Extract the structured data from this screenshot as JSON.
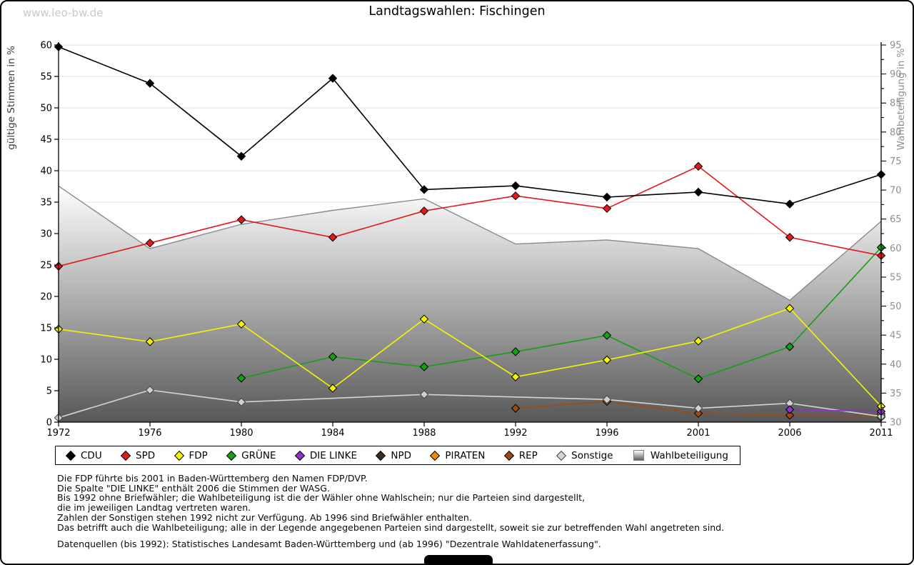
{
  "watermark": "www.leo-bw.de",
  "title": "Landtagswahlen: Fischingen",
  "axes": {
    "left_label": "gültige Stimmen in %",
    "right_label": "Wahlbeteiligung in %"
  },
  "chart_data": {
    "type": "line",
    "title": "Landtagswahlen: Fischingen",
    "x": [
      1972,
      1976,
      1980,
      1984,
      1988,
      1992,
      1996,
      2001,
      2006,
      2011
    ],
    "xlabel": "",
    "ylabel_left": "gültige Stimmen in %",
    "ylabel_right": "Wahlbeteiligung in %",
    "ylim_left": [
      0,
      60
    ],
    "ylim_right": [
      30,
      95
    ],
    "ytick_step": 5,
    "grid": true,
    "legend_position": "bottom",
    "series": [
      {
        "name": "CDU",
        "color": "#000000",
        "axis": "left",
        "type": "line",
        "values": [
          59.7,
          53.9,
          42.3,
          54.7,
          37.0,
          37.6,
          35.8,
          36.6,
          34.7,
          39.4
        ]
      },
      {
        "name": "SPD",
        "color": "#e2191c",
        "axis": "left",
        "type": "line",
        "values": [
          24.8,
          28.5,
          32.2,
          29.4,
          33.6,
          36.0,
          34.0,
          40.7,
          29.4,
          26.5
        ]
      },
      {
        "name": "FDP",
        "color": "#f5f500",
        "axis": "left",
        "type": "line",
        "values": [
          14.8,
          12.8,
          15.6,
          5.4,
          16.4,
          7.2,
          9.9,
          12.9,
          18.1,
          2.5
        ]
      },
      {
        "name": "GRÜNE",
        "color": "#169e16",
        "axis": "left",
        "type": "line",
        "values": [
          null,
          null,
          7.0,
          10.4,
          8.8,
          11.2,
          13.8,
          6.9,
          12.0,
          27.8
        ]
      },
      {
        "name": "DIE LINKE",
        "color": "#9131ce",
        "axis": "left",
        "type": "line",
        "values": [
          null,
          null,
          null,
          null,
          null,
          null,
          null,
          null,
          2.0,
          1.7
        ]
      },
      {
        "name": "NPD",
        "color": "#3b2b20",
        "axis": "left",
        "type": "line",
        "values": [
          null,
          null,
          null,
          null,
          null,
          null,
          null,
          null,
          null,
          0.8
        ]
      },
      {
        "name": "PIRATEN",
        "color": "#f08c00",
        "axis": "left",
        "type": "line",
        "values": [
          null,
          null,
          null,
          null,
          null,
          null,
          null,
          null,
          null,
          1.3
        ]
      },
      {
        "name": "REP",
        "color": "#9e4a15",
        "axis": "left",
        "type": "line",
        "values": [
          null,
          null,
          null,
          null,
          null,
          2.2,
          3.3,
          1.4,
          1.1,
          1.0
        ]
      },
      {
        "name": "Sonstige",
        "color": "#d4d4d4",
        "axis": "left",
        "type": "line",
        "values": [
          0.7,
          5.1,
          3.2,
          null,
          4.4,
          null,
          3.6,
          2.2,
          3.0,
          0.9
        ]
      },
      {
        "name": "Wahlbeteiligung",
        "color": "#8a8a8a",
        "axis": "right",
        "type": "area",
        "values": [
          70.7,
          59.9,
          64.1,
          66.5,
          68.5,
          60.7,
          61.4,
          59.9,
          51.0,
          64.6
        ]
      }
    ]
  },
  "footnotes": [
    "Die FDP führte bis 2001 in Baden-Württemberg den Namen FDP/DVP.",
    "Die Spalte \"DIE LINKE\" enthält 2006 die Stimmen der WASG.",
    "Bis 1992 ohne Briefwähler; die Wahlbeteiligung ist die der Wähler ohne Wahlschein; nur die Parteien sind dargestellt,",
    "die im jeweiligen Landtag vertreten waren.",
    "Zahlen der Sonstigen stehen 1992 nicht zur Verfügung. Ab 1996 sind Briefwähler enthalten.",
    "Das betrifft auch die Wahlbeteiligung; alle in der Legende angegebenen Parteien sind dargestellt, soweit sie zur betreffenden Wahl angetreten sind.",
    "",
    "Datenquellen (bis 1992): Statistisches Landesamt Baden-Württemberg und (ab 1996) \"Dezentrale Wahldatenerfassung\"."
  ]
}
